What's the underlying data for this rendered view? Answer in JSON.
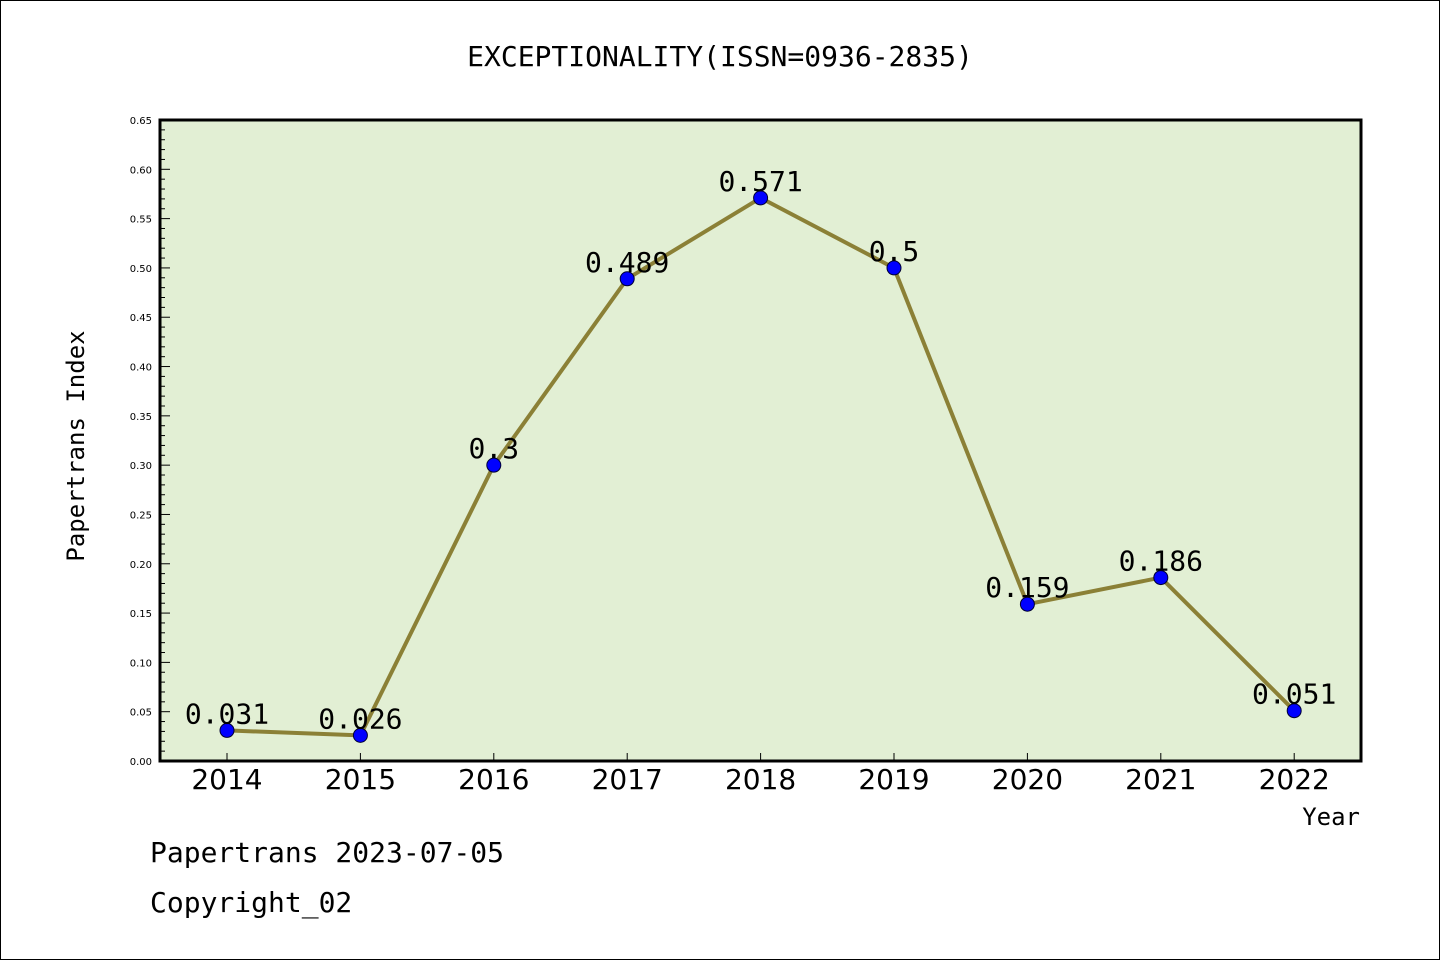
{
  "chart_data": {
    "type": "line",
    "title": "EXCEPTIONALITY(ISSN=0936-2835)",
    "xlabel": "Year",
    "ylabel": "Papertrans Index",
    "categories": [
      "2014",
      "2015",
      "2016",
      "2017",
      "2018",
      "2019",
      "2020",
      "2021",
      "2022"
    ],
    "values": [
      0.031,
      0.026,
      0.3,
      0.489,
      0.571,
      0.5,
      0.159,
      0.186,
      0.051
    ],
    "data_labels": [
      "0.031",
      "0.026",
      "0.3",
      "0.489",
      "0.571",
      "0.5",
      "0.159",
      "0.186",
      "0.051"
    ],
    "ylim": [
      0,
      0.65
    ],
    "yticks": [
      "0.00",
      "0.05",
      "0.10",
      "0.15",
      "0.20",
      "0.25",
      "0.30",
      "0.35",
      "0.40",
      "0.45",
      "0.50",
      "0.55",
      "0.60",
      "0.65"
    ],
    "grid": false,
    "colors": {
      "plot_background": "#e2efd4",
      "line": "#8b8036",
      "marker": "#0000ff"
    }
  },
  "footer": {
    "date_line": "Papertrans 2023-07-05",
    "copyright": "Copyright_02"
  }
}
